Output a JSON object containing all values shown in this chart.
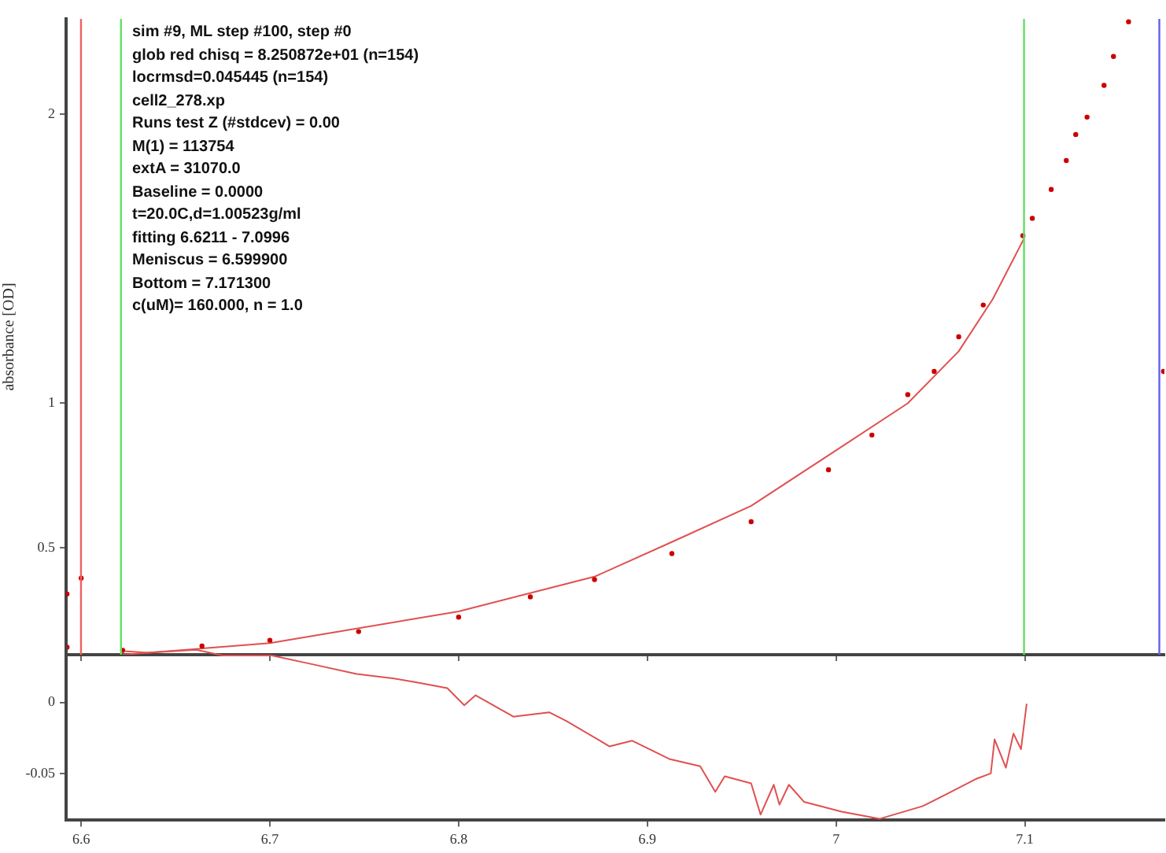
{
  "chart_data": [
    {
      "type": "scatter",
      "ylabel": "absorbance [OD]",
      "xlim": [
        6.592,
        7.174
      ],
      "ylim": [
        0.13,
        2.33
      ],
      "xticks": [
        6.6,
        6.7,
        6.8,
        6.9,
        7,
        7.1
      ],
      "yticks": [
        0.5,
        1,
        2
      ],
      "tick_labels": "y",
      "annotations": [
        "sim #9, ML step #100, step #0",
        "glob red chisq = 8.250872e+01 (n=154)",
        "locrmsd=0.045445 (n=154)",
        "cell2_278.xp",
        "Runs test Z (#stdcev) = 0.00",
        "M(1) = 113754",
        "extA = 31070.0",
        "Baseline = 0.0000",
        "t=20.0C,d=1.00523g/ml",
        "fitting 6.6211 - 7.0996",
        "Meniscus = 6.599900",
        "Bottom = 7.171300",
        "c(uM)= 160.000, n = 1.0"
      ],
      "ref_lines": [
        {
          "axis": "x",
          "value": 6.5999,
          "color": "#f06060"
        },
        {
          "axis": "x",
          "value": 6.6211,
          "color": "#60e060"
        },
        {
          "axis": "x",
          "value": 7.0996,
          "color": "#60e060"
        },
        {
          "axis": "x",
          "value": 7.1713,
          "color": "#6060f0"
        }
      ],
      "series": [
        {
          "marker": "circle",
          "color": "#cc0000",
          "x": [
            6.5925,
            6.5925,
            6.6,
            6.622,
            6.664,
            6.7,
            6.747,
            6.8,
            6.838,
            6.872,
            6.913,
            6.955,
            6.996,
            7.019,
            7.038,
            7.052,
            7.065,
            7.078,
            7.099,
            7.104,
            7.114,
            7.122,
            7.127,
            7.133,
            7.142,
            7.147,
            7.155,
            7.1735
          ],
          "values": [
            0.156,
            0.34,
            0.395,
            0.145,
            0.16,
            0.18,
            0.21,
            0.26,
            0.33,
            0.39,
            0.48,
            0.59,
            0.77,
            0.89,
            1.03,
            1.11,
            1.23,
            1.34,
            1.58,
            1.64,
            1.74,
            1.84,
            1.93,
            1.99,
            2.1,
            2.2,
            2.32,
            1.11
          ]
        },
        {
          "type": "line",
          "marker": "none",
          "color": "#e05050",
          "x": [
            6.622,
            6.7,
            6.8,
            6.872,
            6.913,
            6.955,
            6.996,
            7.038,
            7.065,
            7.083,
            7.0996
          ],
          "values": [
            0.13,
            0.17,
            0.28,
            0.4,
            0.52,
            0.645,
            0.82,
            1.0,
            1.18,
            1.36,
            1.57
          ]
        }
      ]
    },
    {
      "type": "line",
      "xlim": [
        6.592,
        7.174
      ],
      "ylim": [
        -0.083,
        0.038
      ],
      "xticks": [
        6.6,
        6.7,
        6.8,
        6.9,
        7,
        7.1
      ],
      "yticks": [
        -0.05,
        0
      ],
      "series": [
        {
          "marker": "none",
          "color": "#e05050",
          "x": [
            6.623,
            6.635,
            6.661,
            6.675,
            6.701,
            6.722,
            6.746,
            6.765,
            6.778,
            6.794,
            6.803,
            6.809,
            6.829,
            6.848,
            6.857,
            6.88,
            6.892,
            6.912,
            6.928,
            6.936,
            6.941,
            6.955,
            6.96,
            6.967,
            6.97,
            6.975,
            6.983,
            7.003,
            7.023,
            7.046,
            7.058,
            7.074,
            7.082,
            7.084,
            7.09,
            7.094,
            7.098,
            7.101
          ],
          "values": [
            0.036,
            0.035,
            0.037,
            0.033,
            0.033,
            0.027,
            0.02,
            0.017,
            0.014,
            0.01,
            -0.002,
            0.005,
            -0.01,
            -0.007,
            -0.013,
            -0.031,
            -0.027,
            -0.04,
            -0.045,
            -0.063,
            -0.052,
            -0.057,
            -0.079,
            -0.058,
            -0.072,
            -0.058,
            -0.07,
            -0.077,
            -0.082,
            -0.073,
            -0.065,
            -0.054,
            -0.05,
            -0.026,
            -0.046,
            -0.022,
            -0.033,
            -0.001
          ]
        }
      ]
    }
  ]
}
